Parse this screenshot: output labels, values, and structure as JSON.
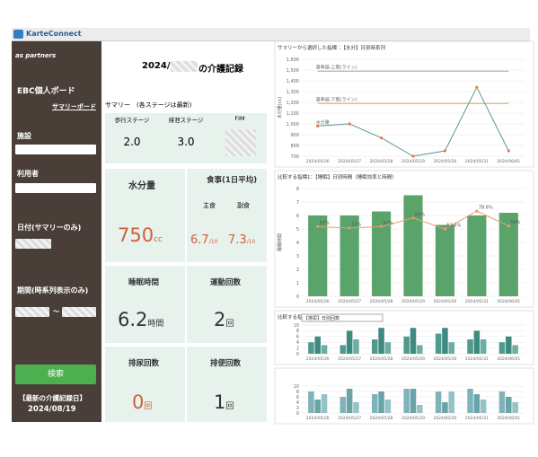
{
  "header": {
    "logo": "KarteConnect"
  },
  "sidebar": {
    "brand": "as partners",
    "board": "EBC個人ボード",
    "summary_link": "サマリーボード",
    "facility": "施設",
    "user": "利用者",
    "date": "日付(サマリーのみ)",
    "period": "期間(時系列表示のみ)",
    "tilde": "〜",
    "search": "検索",
    "latest_label": "【最新の介護記録日】",
    "latest_date": "2024/08/19"
  },
  "main": {
    "title_prefix": "2024/",
    "title_suffix": "の介護記録",
    "summary": "サマリー　(各ステージは最新)",
    "stages": [
      {
        "label": "歩行ステージ",
        "value": "2.0"
      },
      {
        "label": "排泄ステージ",
        "value": "3.0"
      },
      {
        "label": "FIM"
      }
    ],
    "water": {
      "label": "水分量",
      "value": "750",
      "unit": "cc"
    },
    "meal": {
      "label": "食事(1日平均)",
      "staple": "主食",
      "side": "副食",
      "staple_value": "6.7",
      "side_value": "7.3",
      "unit": "/10"
    },
    "sleep": {
      "label": "睡眠時間",
      "value": "6.2",
      "unit": "時間"
    },
    "exercise": {
      "label": "運動回数",
      "value": "2",
      "unit": "回"
    },
    "urine": {
      "label": "排尿回数",
      "value": "0",
      "unit": "回"
    },
    "stool": {
      "label": "排便回数",
      "value": "1",
      "unit": "回"
    }
  },
  "chart_data": [
    {
      "type": "line",
      "title": "サマリーから選択した指標 ：【水分】日別時系列",
      "ylabel": "水分量(cc)",
      "x": [
        "2024/05/26",
        "2024/05/27",
        "2024/05/28",
        "2024/05/29",
        "2024/05/30",
        "2024/05/31",
        "2024/06/01"
      ],
      "series": [
        {
          "name": "基準値-上限(ライン)",
          "color": "#7fb3a8",
          "values": [
            1490,
            1490,
            1490,
            1490,
            1490,
            1490,
            1490
          ]
        },
        {
          "name": "基準値-下限(ライン)",
          "color": "#e0a060",
          "values": [
            1190,
            1190,
            1190,
            1190,
            1190,
            1190,
            1190
          ]
        },
        {
          "name": "水分量",
          "color": "#5a9a8a",
          "marker": "#e07b4f",
          "values": [
            980,
            1000,
            870,
            700,
            750,
            1340,
            750
          ]
        }
      ],
      "ylim": [
        700,
        1600
      ],
      "yticks": [
        700,
        800,
        900,
        {
          "value": 1000,
          "label": "1,000"
        },
        {
          "value": 1100,
          "label": "1,100"
        },
        {
          "value": 1200,
          "label": "1,200"
        },
        {
          "value": 1300,
          "label": "1,300"
        },
        {
          "value": 1400,
          "label": "1,400"
        },
        {
          "value": 1500,
          "label": "1,500"
        },
        {
          "value": 1600,
          "label": "1,600"
        }
      ],
      "grid": true
    },
    {
      "type": "bar",
      "title": "比較する指標1：【睡眠】日別時間（睡眠効率と時間）",
      "ylabel": "睡眠時間",
      "x": [
        "2024/05/26",
        "2024/05/27",
        "2024/05/28",
        "2024/05/29",
        "2024/05/30",
        "2024/05/31",
        "2024/06/01"
      ],
      "series": [
        {
          "type": "bar",
          "color": "#5aa36b",
          "values": [
            6.0,
            6.0,
            6.3,
            7.5,
            5.3,
            6.0,
            6.2
          ]
        },
        {
          "type": "line",
          "axis": "y2",
          "color": "#e0a070",
          "values": [
            57,
            55,
            57,
            69,
            53.6,
            78.6,
            58
          ],
          "value_labels": [
            "57%",
            "55%",
            "57%",
            "69%",
            "53.6%",
            "78.6%",
            "58%"
          ]
        }
      ],
      "ylim": [
        0,
        8
      ],
      "yticks": [
        0,
        1,
        2,
        3,
        4,
        5,
        6,
        7,
        8
      ],
      "y2lim": [
        -40,
        110
      ],
      "grid": true
    },
    {
      "type": "bar",
      "title": "比較する指標2",
      "dropdown": "【排尿】日別回数",
      "x": [
        "2024/05/26",
        "2024/05/27",
        "2024/05/28",
        "2024/05/29",
        "2024/05/30",
        "2024/05/31",
        "2024/06/01"
      ],
      "series": [
        {
          "color": "#4f9a8f",
          "values": [
            4,
            3,
            5,
            6,
            7,
            5,
            4
          ]
        },
        {
          "color": "#3f8a80",
          "values": [
            6,
            8,
            9,
            9,
            9,
            8,
            6
          ]
        },
        {
          "color": "#6aaea4",
          "values": [
            3,
            5,
            4,
            3,
            4,
            5,
            3
          ]
        }
      ],
      "ylim": [
        0,
        10
      ],
      "yticks": [
        0,
        2,
        4,
        6,
        8,
        10
      ],
      "grid": true
    },
    {
      "type": "bar",
      "x": [
        "2024/05/26",
        "2024/05/27",
        "2024/05/28",
        "2024/05/29",
        "2024/05/30",
        "2024/05/31",
        "2024/06/01"
      ],
      "series": [
        {
          "color": "#7fb3b8",
          "values": [
            8,
            6,
            7,
            9,
            8,
            9,
            8
          ]
        },
        {
          "color": "#6aa3a8",
          "values": [
            5,
            9,
            8,
            9,
            4,
            7,
            6
          ]
        },
        {
          "color": "#94c2c6",
          "values": [
            7,
            4,
            5,
            3,
            8,
            5,
            4
          ]
        }
      ],
      "ylim": [
        0,
        10
      ],
      "yticks": [
        0,
        2,
        4,
        6,
        8,
        10
      ],
      "grid": true
    }
  ]
}
